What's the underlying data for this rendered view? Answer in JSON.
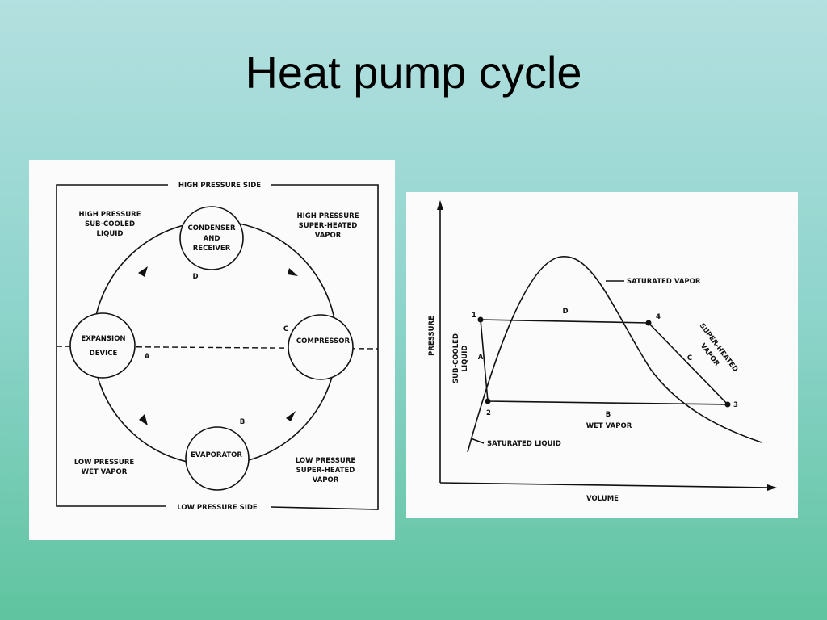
{
  "slide": {
    "title": "Heat pump cycle"
  },
  "cycle_diagram": {
    "frame_top_label": "HIGH PRESSURE SIDE",
    "frame_bottom_label": "LOW PRESSURE SIDE",
    "components": {
      "condenser": [
        "CONDENSER",
        "AND",
        "RECEIVER"
      ],
      "compressor": "COMPRESSOR",
      "evaporator": "EVAPORATOR",
      "expansion": [
        "EXPANSION",
        "DEVICE"
      ]
    },
    "state_labels": {
      "top_left": [
        "HIGH PRESSURE",
        "SUB-COOLED",
        "LIQUID"
      ],
      "top_right": [
        "HIGH PRESSURE",
        "SUPER-HEATED",
        "VAPOR"
      ],
      "bottom_left": [
        "LOW PRESSURE",
        "WET VAPOR"
      ],
      "bottom_right": [
        "LOW PRESSURE",
        "SUPER-HEATED",
        "VAPOR"
      ]
    },
    "point_labels": {
      "a": "A",
      "b": "B",
      "c": "C",
      "d": "D"
    }
  },
  "pv_diagram": {
    "y_axis_label": "PRESSURE",
    "x_axis_label": "VOLUME",
    "curve_labels": {
      "saturated_vapor": "SATURATED VAPOR",
      "saturated_liquid": "SATURATED LIQUID",
      "sub_cooled": [
        "SUB-COOLED",
        "LIQUID"
      ],
      "super_heated": [
        "SUPER-HEATED",
        "VAPOR"
      ],
      "wet_vapor": "WET VAPOR"
    },
    "points": {
      "p1": "1",
      "p2": "2",
      "p3": "3",
      "p4": "4"
    },
    "segments": {
      "a": "A",
      "b": "B",
      "c": "C",
      "d": "D"
    }
  }
}
